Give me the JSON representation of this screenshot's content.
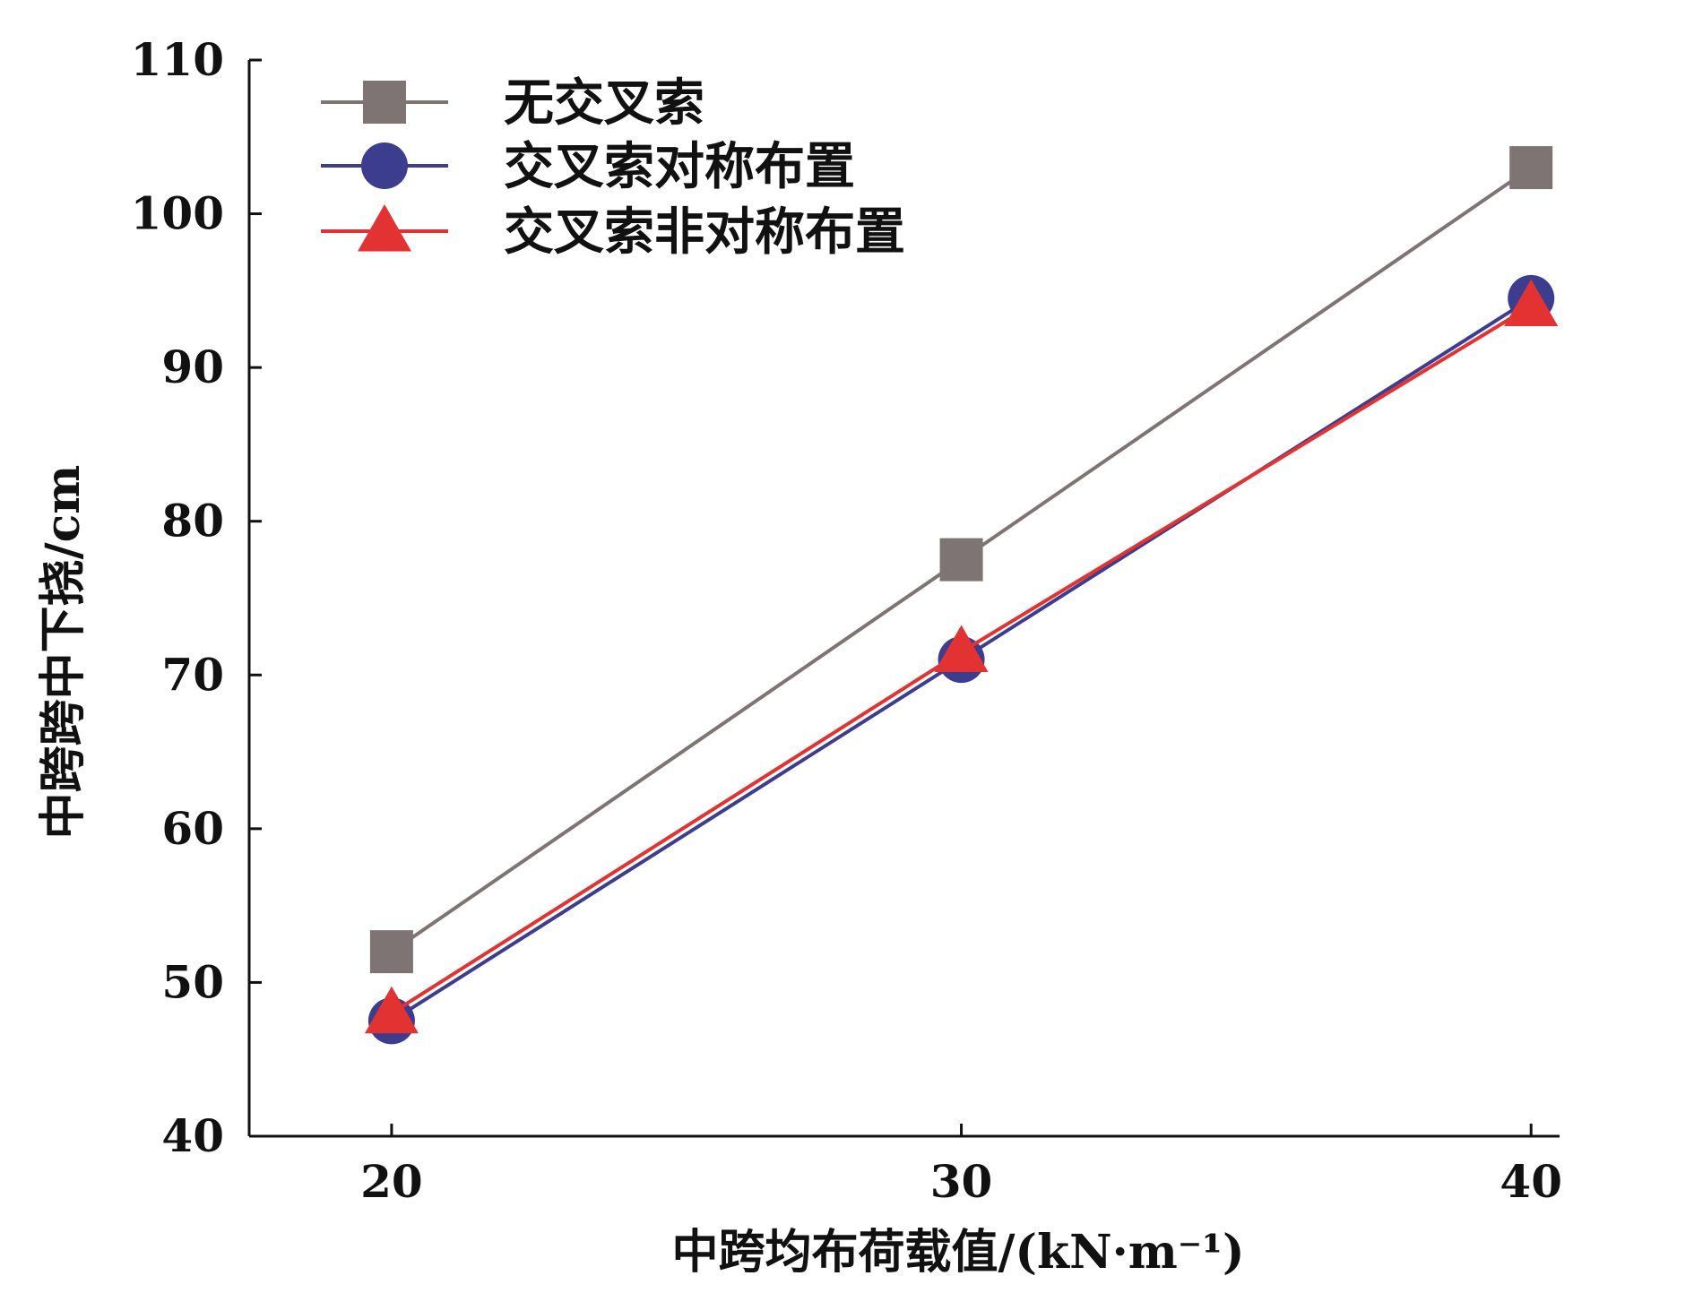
{
  "chart_data": {
    "type": "line",
    "title": "",
    "xlabel": "中跨均布荷载值/(kN·m⁻¹)",
    "ylabel": "中跨跨中下挠/cm",
    "x": [
      20,
      30,
      40
    ],
    "xticks": [
      "20",
      "30",
      "40"
    ],
    "yticks": [
      "40",
      "50",
      "60",
      "70",
      "80",
      "90",
      "100",
      "110"
    ],
    "xlim": [
      17.5,
      40.5
    ],
    "ylim": [
      40,
      110
    ],
    "grid": false,
    "legend_position": "top-left",
    "series": [
      {
        "name": "无交叉索",
        "values": [
          52,
          77.5,
          103
        ],
        "marker": "square",
        "color": "#7f7474"
      },
      {
        "name": "交叉索对称布置",
        "values": [
          47.5,
          71,
          94.5
        ],
        "marker": "circle",
        "color": "#3d3d8f"
      },
      {
        "name": "交叉索非对称布置",
        "values": [
          48,
          71.5,
          94
        ],
        "marker": "triangle",
        "color": "#e23232"
      }
    ]
  }
}
